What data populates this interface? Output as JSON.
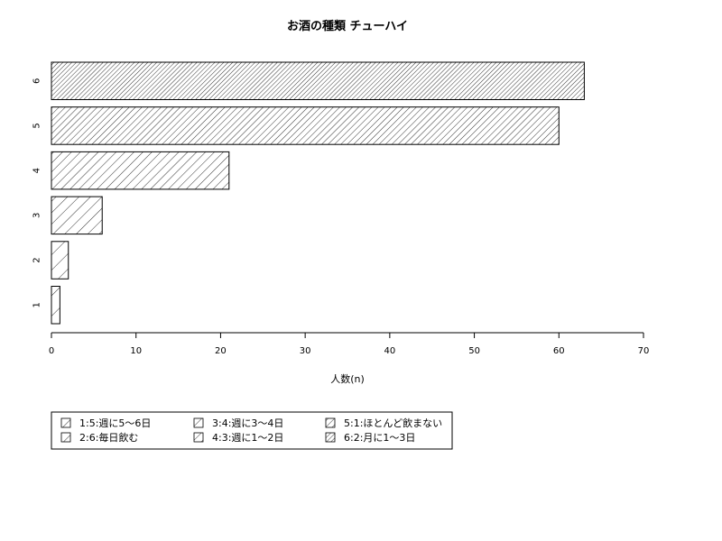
{
  "chart_data": {
    "type": "bar",
    "orientation": "horizontal",
    "title": "お酒の種類 チューハイ",
    "xlabel": "人数(n)",
    "ylabel": "",
    "categories": [
      "1",
      "2",
      "3",
      "4",
      "5",
      "6"
    ],
    "values": [
      1,
      2,
      6,
      21,
      60,
      63
    ],
    "xlim": [
      0,
      70
    ],
    "xticks": [
      0,
      10,
      20,
      30,
      40,
      50,
      60,
      70
    ],
    "fill": "hatched (diagonal lines, density increasing with category)",
    "grid": false,
    "legend": {
      "placement": "bottom-left",
      "entries": [
        "1:5:週に5〜6日",
        "2:6:毎日飲む",
        "3:4:週に3〜4日",
        "4:3:週に1〜2日",
        "5:1:ほとんど飲まない",
        "6:2:月に1〜3日"
      ]
    }
  }
}
